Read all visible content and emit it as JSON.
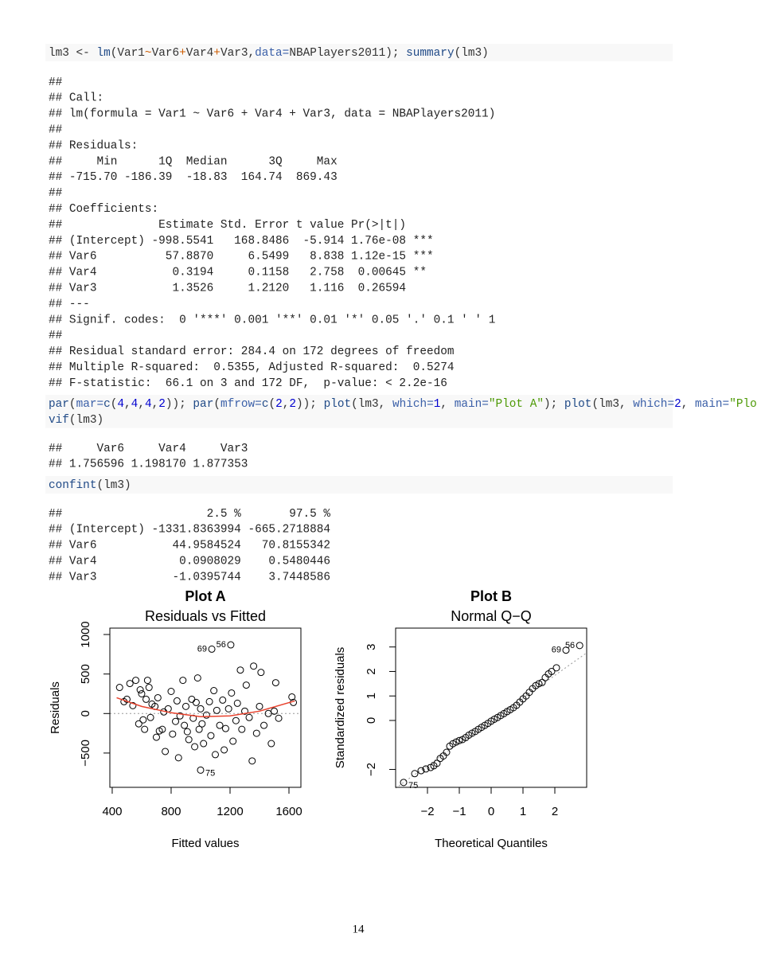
{
  "document": {
    "blocks": [
      {
        "code": [
          [
            "lm3 <- ",
            {
              "text": "lm",
              "color": "#204a87"
            },
            "(Var1",
            {
              "text": "~",
              "color": "#ce5c00"
            },
            "Var6",
            {
              "text": "+",
              "color": "#ce5c00"
            },
            "Var4",
            {
              "text": "+",
              "color": "#ce5c00"
            },
            "Var3,",
            {
              "text": "data=",
              "color": "#3a5fa8"
            },
            "NBAPlayers2011); ",
            {
              "text": "summary",
              "color": "#204a87"
            },
            "(lm3)"
          ]
        ]
      },
      {
        "output": [
          "##",
          "## Call:",
          "## lm(formula = Var1 ~ Var6 + Var4 + Var3, data = NBAPlayers2011)",
          "##",
          "## Residuals:",
          "##     Min      1Q  Median      3Q     Max",
          "## -715.70 -186.39  -18.83  164.74  869.43",
          "##",
          "## Coefficients:",
          "##              Estimate Std. Error t value Pr(>|t|)",
          "## (Intercept) -998.5541   168.8486  -5.914 1.76e-08 ***",
          "## Var6          57.8870     6.5499   8.838 1.12e-15 ***",
          "## Var4           0.3194     0.1158   2.758  0.00645 **",
          "## Var3           1.3526     1.2120   1.116  0.26594",
          "## ---",
          "## Signif. codes:  0 '***' 0.001 '**' 0.01 '*' 0.05 '.' 0.1 ' ' 1",
          "##",
          "## Residual standard error: 284.4 on 172 degrees of freedom",
          "## Multiple R-squared:  0.5355, Adjusted R-squared:  0.5274",
          "## F-statistic:  66.1 on 3 and 172 DF,  p-value: < 2.2e-16"
        ]
      },
      {
        "code": [
          [
            {
              "text": "par",
              "color": "#204a87"
            },
            "(",
            {
              "text": "mar=",
              "color": "#3a5fa8"
            },
            {
              "text": "c",
              "color": "#204a87"
            },
            "(",
            {
              "text": "4",
              "color": "#0000cf"
            },
            ",",
            {
              "text": "4",
              "color": "#0000cf"
            },
            ",",
            {
              "text": "4",
              "color": "#0000cf"
            },
            ",",
            {
              "text": "2",
              "color": "#0000cf"
            },
            ")); ",
            {
              "text": "par",
              "color": "#204a87"
            },
            "(",
            {
              "text": "mfrow=",
              "color": "#3a5fa8"
            },
            {
              "text": "c",
              "color": "#204a87"
            },
            "(",
            {
              "text": "2",
              "color": "#0000cf"
            },
            ",",
            {
              "text": "2",
              "color": "#0000cf"
            },
            ")); ",
            {
              "text": "plot",
              "color": "#204a87"
            },
            "(lm3, ",
            {
              "text": "which=",
              "color": "#3a5fa8"
            },
            {
              "text": "1",
              "color": "#0000cf"
            },
            ", ",
            {
              "text": "main=",
              "color": "#3a5fa8"
            },
            {
              "text": "\"Plot A\"",
              "color": "#4e9a06"
            },
            "); ",
            {
              "text": "plot",
              "color": "#204a87"
            },
            "(lm3, ",
            {
              "text": "which=",
              "color": "#3a5fa8"
            },
            {
              "text": "2",
              "color": "#0000cf"
            },
            ", ",
            {
              "text": "main=",
              "color": "#3a5fa8"
            },
            {
              "text": "\"Plo",
              "color": "#4e9a06"
            }
          ],
          [
            {
              "text": "vif",
              "color": "#204a87"
            },
            "(lm3)"
          ]
        ]
      },
      {
        "output": [
          "##     Var6     Var4     Var3",
          "## 1.756596 1.198170 1.877353"
        ]
      },
      {
        "code": [
          [
            {
              "text": "confint",
              "color": "#204a87"
            },
            "(lm3)"
          ]
        ]
      },
      {
        "output": [
          "##                     2.5 %       97.5 %",
          "## (Intercept) -1331.8363994 -665.2718884",
          "## Var6           44.9584524   70.8155342",
          "## Var4            0.0908029    0.5480446",
          "## Var3           -1.0395744    3.7448586"
        ]
      }
    ],
    "page_number": "14"
  },
  "chart_data": [
    {
      "type": "scatter",
      "title": "Plot A",
      "subtitle": "Residuals vs Fitted",
      "x_label": "Fitted values",
      "y_label": "Residuals",
      "color": "#000000",
      "xlim": [
        384,
        1681
      ],
      "ylim": [
        -934,
        1081
      ],
      "xticks": [
        400,
        800,
        1200,
        1600
      ],
      "yticks": [
        {
          "value": -500,
          "label": "−500"
        },
        0,
        500,
        1000
      ],
      "x": [
        450,
        480,
        500,
        520,
        540,
        560,
        580,
        590,
        600,
        610,
        620,
        630,
        640,
        650,
        660,
        670,
        690,
        700,
        710,
        720,
        740,
        750,
        760,
        780,
        800,
        810,
        830,
        840,
        850,
        860,
        880,
        890,
        900,
        910,
        920,
        940,
        950,
        960,
        970,
        980,
        990,
        1000,
        1010,
        1020,
        1040,
        1060,
        1070,
        1090,
        1100,
        1110,
        1130,
        1150,
        1160,
        1170,
        1190,
        1210,
        1220,
        1240,
        1250,
        1270,
        1280,
        1300,
        1310,
        1330,
        1350,
        1360,
        1380,
        1400,
        1410,
        1430,
        1460,
        1480,
        1500,
        1510,
        1530,
        1620,
        1630
      ],
      "values": [
        330,
        150,
        180,
        380,
        100,
        420,
        -130,
        300,
        250,
        -80,
        -200,
        180,
        420,
        330,
        -50,
        120,
        90,
        -300,
        200,
        -220,
        -200,
        20,
        -480,
        60,
        280,
        -260,
        -100,
        160,
        -560,
        -30,
        420,
        -150,
        90,
        -230,
        -330,
        180,
        -60,
        -420,
        140,
        450,
        -200,
        60,
        -130,
        -380,
        -20,
        150,
        -280,
        290,
        -520,
        40,
        -150,
        170,
        -460,
        -190,
        60,
        260,
        -350,
        -90,
        130,
        550,
        -200,
        30,
        360,
        -50,
        -600,
        600,
        -250,
        90,
        520,
        -150,
        0,
        -380,
        30,
        390,
        -60,
        210,
        140
      ],
      "labeled_points": [
        {
          "x": 1205,
          "y": 869,
          "label": "56"
        },
        {
          "x": 1076,
          "y": 815,
          "label": "69"
        },
        {
          "x": 1000,
          "y": -716,
          "label": "75"
        }
      ],
      "smooth": {
        "color": "#e8412c",
        "x": [
          430,
          600,
          800,
          1000,
          1200,
          1400,
          1640
        ],
        "values": [
          200,
          90,
          10,
          -40,
          -30,
          30,
          160
        ]
      },
      "reference_line": {
        "y": 0,
        "color": "#999999"
      }
    },
    {
      "type": "scatter",
      "title": "Plot B",
      "subtitle": "Normal Q−Q",
      "x_label": "Theoretical Quantiles",
      "y_label": "Standardized residuals",
      "color": "#000000",
      "xlim": [
        -3,
        3
      ],
      "ylim": [
        -2.73,
        3.77
      ],
      "xticks": [
        {
          "value": -2,
          "label": "−2"
        },
        {
          "value": -1,
          "label": "−1"
        },
        0,
        1,
        2
      ],
      "yticks": [
        {
          "value": -2,
          "label": "−2"
        },
        0,
        1,
        2,
        3
      ],
      "x": [
        -2.4,
        -2.2,
        -2.05,
        -1.9,
        -1.8,
        -1.7,
        -1.6,
        -1.5,
        -1.4,
        -1.3,
        -1.2,
        -1.1,
        -1.0,
        -0.9,
        -0.8,
        -0.7,
        -0.6,
        -0.5,
        -0.4,
        -0.3,
        -0.2,
        -0.1,
        0,
        0.1,
        0.2,
        0.3,
        0.4,
        0.5,
        0.6,
        0.7,
        0.8,
        0.9,
        1.0,
        1.1,
        1.2,
        1.3,
        1.4,
        1.5,
        1.6,
        1.7,
        1.8,
        1.9,
        2.05
      ],
      "values": [
        -2.17,
        -2.05,
        -1.98,
        -1.92,
        -1.85,
        -1.75,
        -1.55,
        -1.45,
        -1.3,
        -1.05,
        -0.95,
        -0.88,
        -0.82,
        -0.78,
        -0.7,
        -0.6,
        -0.52,
        -0.45,
        -0.36,
        -0.28,
        -0.2,
        -0.12,
        -0.03,
        0.05,
        0.12,
        0.2,
        0.28,
        0.36,
        0.44,
        0.52,
        0.62,
        0.75,
        0.88,
        1.0,
        1.15,
        1.3,
        1.42,
        1.5,
        1.55,
        1.75,
        1.9,
        2.0,
        2.15
      ],
      "labeled_points": [
        {
          "x": -2.75,
          "y": -2.53,
          "label": "75"
        },
        {
          "x": 2.35,
          "y": 2.87,
          "label": "69"
        },
        {
          "x": 2.78,
          "y": 3.06,
          "label": "56"
        }
      ],
      "reference_line": {
        "intercept": 0,
        "slope": 0.92,
        "color": "#999999"
      }
    }
  ]
}
